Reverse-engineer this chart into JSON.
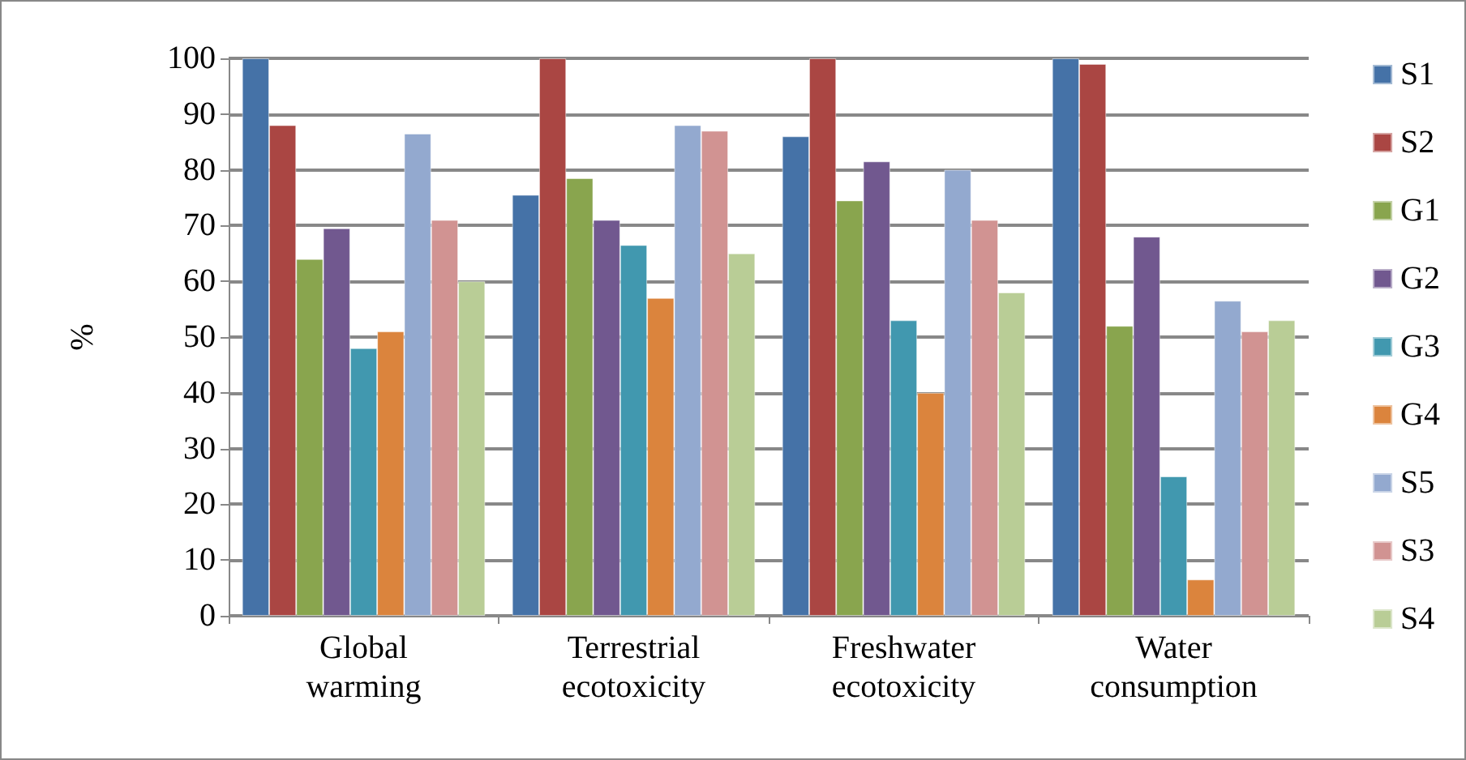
{
  "chart_data": {
    "type": "bar",
    "ylabel": "%",
    "categories": [
      "Global\nwarming",
      "Terrestrial\necotoxicity",
      "Freshwater\necotoxicity",
      "Water\nconsumption"
    ],
    "series": [
      {
        "name": "S1",
        "color": "#4572a7",
        "values": [
          100,
          75.5,
          86,
          100
        ]
      },
      {
        "name": "S2",
        "color": "#aa4643",
        "values": [
          88,
          100,
          100,
          99
        ]
      },
      {
        "name": "G1",
        "color": "#89a54e",
        "values": [
          64,
          78.5,
          74.5,
          52
        ]
      },
      {
        "name": "G2",
        "color": "#71588f",
        "values": [
          69.5,
          71,
          81.5,
          68
        ]
      },
      {
        "name": "G3",
        "color": "#4198af",
        "values": [
          48,
          66.5,
          53,
          25
        ]
      },
      {
        "name": "G4",
        "color": "#db843d",
        "values": [
          51,
          57,
          40,
          6.5
        ]
      },
      {
        "name": "S5",
        "color": "#93a9cf",
        "values": [
          86.5,
          88,
          80,
          56.5
        ]
      },
      {
        "name": "S3",
        "color": "#d19392",
        "values": [
          71,
          87,
          71,
          51
        ]
      },
      {
        "name": "S4",
        "color": "#b9cd96",
        "values": [
          60,
          65,
          58,
          53
        ]
      }
    ],
    "ylim": [
      0,
      100
    ],
    "yticks": [
      0,
      10,
      20,
      30,
      40,
      50,
      60,
      70,
      80,
      90,
      100
    ],
    "grid": "y",
    "legend": "right"
  }
}
